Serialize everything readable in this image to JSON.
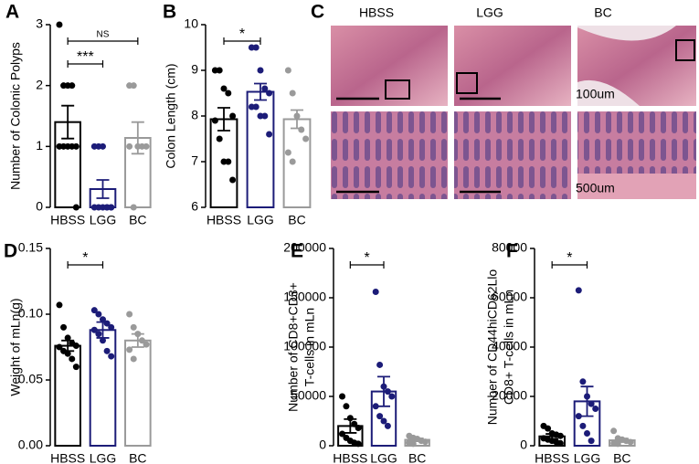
{
  "chart_data": [
    {
      "type": "bar",
      "panel": "A",
      "ylabel": [
        "Number of Colonic Polyps"
      ],
      "categories": [
        "HBSS",
        "LGG",
        "BC"
      ],
      "colors": [
        "#000000",
        "#1c1c78",
        "#9a9a9a"
      ],
      "values": [
        1.4,
        0.3,
        1.14
      ],
      "errors": [
        0.27,
        0.15,
        0.26
      ],
      "points": [
        [
          3,
          2,
          2,
          2,
          1,
          1,
          1,
          1,
          1,
          0
        ],
        [
          1,
          1,
          1,
          0,
          0,
          0,
          0,
          0,
          0,
          0
        ],
        [
          2,
          2,
          1,
          1,
          1,
          1,
          0
        ]
      ],
      "ylim": [
        0,
        3
      ],
      "yticks": [
        0,
        1,
        2,
        3
      ],
      "annotations": [
        {
          "text": "NS",
          "between": [
            "HBSS",
            "BC"
          ]
        },
        {
          "text": "***",
          "between": [
            "HBSS",
            "LGG"
          ]
        }
      ]
    },
    {
      "type": "bar",
      "panel": "B",
      "ylabel": [
        "Colon Length (cm)"
      ],
      "categories": [
        "HBSS",
        "LGG",
        "BC"
      ],
      "colors": [
        "#000000",
        "#1c1c78",
        "#9a9a9a"
      ],
      "values": [
        7.93,
        8.53,
        7.93
      ],
      "errors": [
        0.25,
        0.18,
        0.2
      ],
      "points": [
        [
          9,
          9,
          8.6,
          8.5,
          8,
          7.9,
          7.5,
          7,
          7,
          6.6
        ],
        [
          9.5,
          9.5,
          9,
          8.6,
          8.5,
          8.2,
          8.2,
          8,
          8,
          7.6
        ],
        [
          9,
          8.5,
          8,
          7.7,
          7.5,
          7.2,
          7
        ]
      ],
      "ylim": [
        6,
        10
      ],
      "yticks": [
        6,
        7,
        8,
        9,
        10
      ],
      "annotations": [
        {
          "text": "*",
          "between": [
            "HBSS",
            "LGG"
          ]
        }
      ]
    },
    {
      "type": "bar",
      "panel": "D",
      "ylabel": [
        "Weight of mLn(g)"
      ],
      "categories": [
        "HBSS",
        "LGG",
        "BC"
      ],
      "colors": [
        "#000000",
        "#1c1c78",
        "#9a9a9a"
      ],
      "values": [
        0.076,
        0.088,
        0.08
      ],
      "errors": [
        0.004,
        0.006,
        0.005
      ],
      "points": [
        [
          0.107,
          0.09,
          0.082,
          0.078,
          0.076,
          0.075,
          0.072,
          0.07,
          0.066,
          0.06
        ],
        [
          0.103,
          0.1,
          0.096,
          0.093,
          0.09,
          0.088,
          0.085,
          0.08,
          0.072,
          0.068
        ],
        [
          0.1,
          0.09,
          0.085,
          0.08,
          0.077,
          0.073,
          0.066
        ]
      ],
      "ylim": [
        0,
        0.15
      ],
      "yticks": [
        {
          "value": 0,
          "label": "0.00"
        },
        0.05,
        {
          "value": 0.1,
          "label": "0.10"
        },
        0.15
      ],
      "annotations": [
        {
          "text": "*",
          "between": [
            "HBSS",
            "LGG"
          ]
        }
      ]
    },
    {
      "type": "bar",
      "panel": "E",
      "ylabel": [
        "Number of CD8+CD3+",
        "T-cells in mLn"
      ],
      "categories": [
        "HBSS",
        "LGG",
        "BC"
      ],
      "colors": [
        "#000000",
        "#1c1c78",
        "#9a9a9a"
      ],
      "values": [
        20000,
        55000,
        6000
      ],
      "errors": [
        7000,
        15000,
        1500
      ],
      "points": [
        [
          50000,
          40000,
          28000,
          22000,
          18000,
          12000,
          8000,
          5000,
          3000,
          2000
        ],
        [
          156000,
          82000,
          60000,
          55000,
          50000,
          40000,
          30000,
          25000,
          20000
        ],
        [
          10000,
          8000,
          7000,
          5000,
          4000,
          3000,
          2000
        ]
      ],
      "ylim": [
        0,
        200000
      ],
      "yticks": [
        0,
        50000,
        100000,
        150000,
        200000
      ],
      "annotations": [
        {
          "text": "*",
          "between": [
            "HBSS",
            "LGG"
          ]
        }
      ]
    },
    {
      "type": "bar",
      "panel": "F",
      "ylabel": [
        "Number of CD44hiCD62Llo",
        "CD8+ T-cells in mLn"
      ],
      "categories": [
        "HBSS",
        "LGG",
        "BC"
      ],
      "colors": [
        "#000000",
        "#1c1c78",
        "#9a9a9a"
      ],
      "values": [
        3800,
        18000,
        2200
      ],
      "errors": [
        1000,
        6000,
        700
      ],
      "points": [
        [
          8000,
          7000,
          5000,
          4500,
          4000,
          3000,
          2500,
          2000,
          1500,
          1000
        ],
        [
          63000,
          26000,
          20000,
          17000,
          15000,
          12000,
          8000,
          5000,
          2000
        ],
        [
          6000,
          3000,
          2500,
          2000,
          1500,
          1000,
          800
        ]
      ],
      "ylim": [
        0,
        80000
      ],
      "yticks": [
        0,
        20000,
        40000,
        60000,
        80000
      ],
      "annotations": [
        {
          "text": "*",
          "between": [
            "HBSS",
            "LGG"
          ]
        }
      ]
    }
  ],
  "images": {
    "panel": "C",
    "columns": [
      "HBSS",
      "LGG",
      "BC"
    ],
    "scale_labels": [
      "100um",
      "500um"
    ]
  }
}
